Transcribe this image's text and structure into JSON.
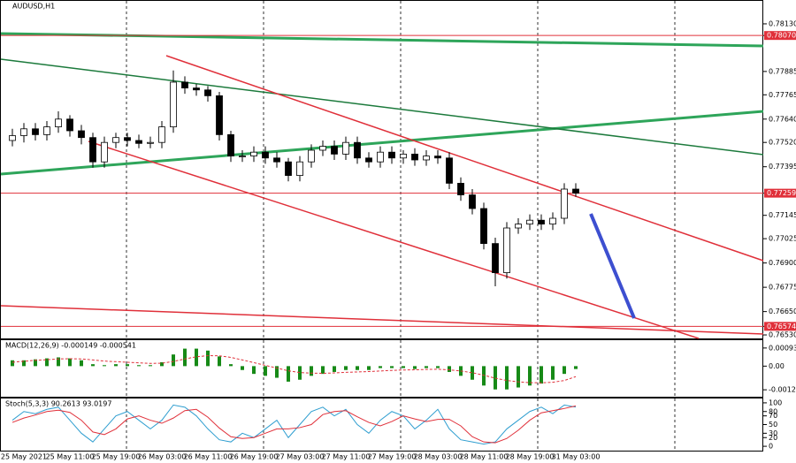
{
  "chart_data": [
    {
      "type": "candlestick",
      "title": "AUDUSD,H1",
      "categories": [
        null,
        "25 May 2021",
        null,
        null,
        null,
        "25 May 11:00",
        null,
        null,
        null,
        "25 May 19:00",
        null,
        null,
        null,
        "26 May 03:00",
        null,
        null,
        null,
        "26 May 11:00",
        null,
        null,
        null,
        "26 May 19:00",
        null,
        null,
        null,
        "27 May 03:00",
        null,
        null,
        null,
        "27 May 11:00",
        null,
        null,
        null,
        "27 May 19:00",
        null,
        null,
        null,
        "28 May 03:00",
        null,
        null,
        null,
        "28 May 11:00",
        null,
        null,
        null,
        "28 May 19:00",
        null,
        null,
        null,
        "31 May 03:00"
      ],
      "open": [
        0.7753,
        0.77555,
        0.7759,
        0.7756,
        0.776,
        0.7764,
        0.7758,
        0.77545,
        0.7742,
        0.7752,
        0.77545,
        0.7753,
        0.77515,
        0.7752,
        0.776,
        0.7783,
        0.778,
        0.7779,
        0.7776,
        0.7756,
        0.7745,
        0.7745,
        0.7747,
        0.7744,
        0.7742,
        0.7735,
        0.7742,
        0.7748,
        0.775,
        0.7746,
        0.7752,
        0.7744,
        0.7742,
        0.7747,
        0.7744,
        0.7746,
        0.7743,
        0.7745,
        0.7744,
        0.7731,
        0.7725,
        0.7718,
        0.77,
        0.7685,
        0.7708,
        0.771,
        0.7712,
        0.771,
        0.7713,
        0.7728
      ],
      "high": [
        0.7759,
        0.7762,
        0.7762,
        0.7763,
        0.7768,
        0.7766,
        0.7761,
        0.7757,
        0.7755,
        0.7757,
        0.7757,
        0.7756,
        0.7755,
        0.7763,
        0.7789,
        0.7786,
        0.7782,
        0.7781,
        0.7778,
        0.7758,
        0.7748,
        0.775,
        0.775,
        0.7747,
        0.7744,
        0.7745,
        0.7751,
        0.7753,
        0.7753,
        0.7755,
        0.7755,
        0.7747,
        0.775,
        0.775,
        0.7748,
        0.7749,
        0.7748,
        0.7748,
        0.7747,
        0.7734,
        0.7728,
        0.7721,
        0.7703,
        0.7711,
        0.7713,
        0.7715,
        0.7715,
        0.7716,
        0.7731,
        0.7731
      ],
      "low": [
        0.775,
        0.7752,
        0.7753,
        0.7753,
        0.7757,
        0.7755,
        0.7751,
        0.7739,
        0.7739,
        0.7749,
        0.775,
        0.7749,
        0.7749,
        0.7749,
        0.7757,
        0.7777,
        0.7776,
        0.7773,
        0.7753,
        0.7742,
        0.7742,
        0.7742,
        0.7741,
        0.7739,
        0.7732,
        0.7732,
        0.7739,
        0.7745,
        0.7743,
        0.7743,
        0.7741,
        0.7739,
        0.7739,
        0.7741,
        0.7741,
        0.774,
        0.774,
        0.7741,
        0.7728,
        0.7722,
        0.7715,
        0.7697,
        0.7678,
        0.7682,
        0.7705,
        0.7707,
        0.7707,
        0.7707,
        0.771,
        0.7724
      ],
      "close": [
        0.77555,
        0.7759,
        0.7756,
        0.776,
        0.7764,
        0.7758,
        0.77545,
        0.7742,
        0.7752,
        0.77545,
        0.7753,
        0.77515,
        0.7752,
        0.776,
        0.7783,
        0.778,
        0.7779,
        0.7776,
        0.7756,
        0.7745,
        0.7745,
        0.7747,
        0.7744,
        0.7742,
        0.7735,
        0.7742,
        0.7748,
        0.775,
        0.7746,
        0.7752,
        0.7744,
        0.7742,
        0.7747,
        0.7744,
        0.7746,
        0.7743,
        0.7745,
        0.7744,
        0.7731,
        0.7725,
        0.7718,
        0.77,
        0.7685,
        0.7708,
        0.771,
        0.7712,
        0.771,
        0.7713,
        0.7728,
        0.77259
      ],
      "ylim": [
        0.76512,
        0.78248
      ],
      "yticks": [
        {
          "value": 0.7813,
          "label": "0.78130"
        },
        {
          "value": 0.7807,
          "label": "0.78070",
          "line_color": "#e0303a"
        },
        {
          "value": 0.77885,
          "label": "0.77885"
        },
        {
          "value": 0.77765,
          "label": "0.77765"
        },
        {
          "value": 0.7764,
          "label": "0.77640"
        },
        {
          "value": 0.7752,
          "label": "0.77520"
        },
        {
          "value": 0.77395,
          "label": "0.77395"
        },
        {
          "value": 0.77259,
          "label": "0.77259",
          "line_color": "#e0303a"
        },
        {
          "value": 0.77145,
          "label": "0.77145"
        },
        {
          "value": 0.77025,
          "label": "0.77025"
        },
        {
          "value": 0.769,
          "label": "0.76900"
        },
        {
          "value": 0.76775,
          "label": "0.76775"
        },
        {
          "value": 0.7665,
          "label": "0.76650"
        },
        {
          "value": 0.76574,
          "label": "0.76574",
          "line_color": "#e0303a"
        },
        {
          "value": 0.7653,
          "label": "0.76530"
        }
      ]
    },
    {
      "type": "macd",
      "title": "MACD(12,26,9) -0.000149 -0.000541",
      "series": [
        {
          "color": "#178a17",
          "values": [
            0.0003,
            0.0003,
            0.00035,
            0.0004,
            0.00045,
            0.0004,
            0.0003,
            0.0001,
            5e-05,
            0.0001,
            0.0001,
            5e-05,
            5e-05,
            0.0002,
            0.0006,
            0.0009,
            0.0009,
            0.0008,
            0.0005,
            0.0001,
            -0.0002,
            -0.0004,
            -0.0005,
            -0.0006,
            -0.0008,
            -0.0007,
            -0.0005,
            -0.0004,
            -0.0003,
            -0.0002,
            -0.0002,
            -0.0002,
            -0.0001,
            -0.0001,
            -0.0001,
            -0.00015,
            -0.0001,
            -0.0001,
            -0.0003,
            -0.0005,
            -0.0007,
            -0.001,
            -0.0012,
            -0.0012,
            -0.0011,
            -0.001,
            -0.0009,
            -0.0007,
            -0.0004,
            -0.000149
          ]
        },
        {
          "color": "#e0303a",
          "values": [
            0.0002,
            0.00025,
            0.0003,
            0.00033,
            0.00037,
            0.00038,
            0.00037,
            0.00032,
            0.00026,
            0.00023,
            0.0002,
            0.00017,
            0.00014,
            0.00015,
            0.00024,
            0.00037,
            0.00048,
            0.00054,
            0.00053,
            0.00045,
            0.00032,
            0.00018,
            4e-05,
            -0.0001,
            -0.00024,
            -0.00033,
            -0.00036,
            -0.00037,
            -0.00035,
            -0.00032,
            -0.0003,
            -0.00028,
            -0.00025,
            -0.00022,
            -0.0002,
            -0.00019,
            -0.00017,
            -0.00016,
            -0.00019,
            -0.00025,
            -0.00034,
            -0.00047,
            -0.00062,
            -0.00074,
            -0.00081,
            -0.00085,
            -0.00086,
            -0.00083,
            -0.00074,
            -0.000541
          ]
        }
      ],
      "ylim": [
        -0.001576,
        0.001336
      ],
      "yticks": [
        {
          "value": 0.000933,
          "label": "0.000933"
        },
        {
          "value": 0,
          "label": "0.00"
        },
        {
          "value": -0.001218,
          "label": "-0.001218"
        }
      ]
    },
    {
      "type": "line",
      "title": "Stoch(5,3,3) 90.2613 93.0197",
      "series": [
        {
          "color": "#2f9ed0",
          "values": [
            60,
            80,
            75,
            85,
            90,
            60,
            30,
            10,
            40,
            70,
            80,
            60,
            40,
            60,
            95,
            90,
            70,
            40,
            15,
            10,
            30,
            20,
            40,
            60,
            20,
            50,
            80,
            90,
            70,
            85,
            50,
            30,
            60,
            80,
            70,
            40,
            60,
            85,
            40,
            15,
            10,
            5,
            10,
            40,
            60,
            80,
            90,
            75,
            95,
            90.2613
          ]
        },
        {
          "color": "#e0303a",
          "values": [
            55,
            65,
            72,
            80,
            83,
            78,
            60,
            33,
            27,
            40,
            63,
            70,
            60,
            53,
            65,
            82,
            85,
            67,
            42,
            22,
            18,
            20,
            30,
            40,
            40,
            43,
            50,
            73,
            80,
            82,
            68,
            55,
            47,
            57,
            70,
            63,
            57,
            62,
            62,
            47,
            22,
            10,
            8,
            18,
            37,
            60,
            77,
            82,
            87,
            93.0197
          ]
        }
      ],
      "ylim": [
        -10,
        110
      ],
      "yticks": [
        100,
        80,
        70,
        50,
        30,
        20,
        0
      ]
    }
  ]
}
